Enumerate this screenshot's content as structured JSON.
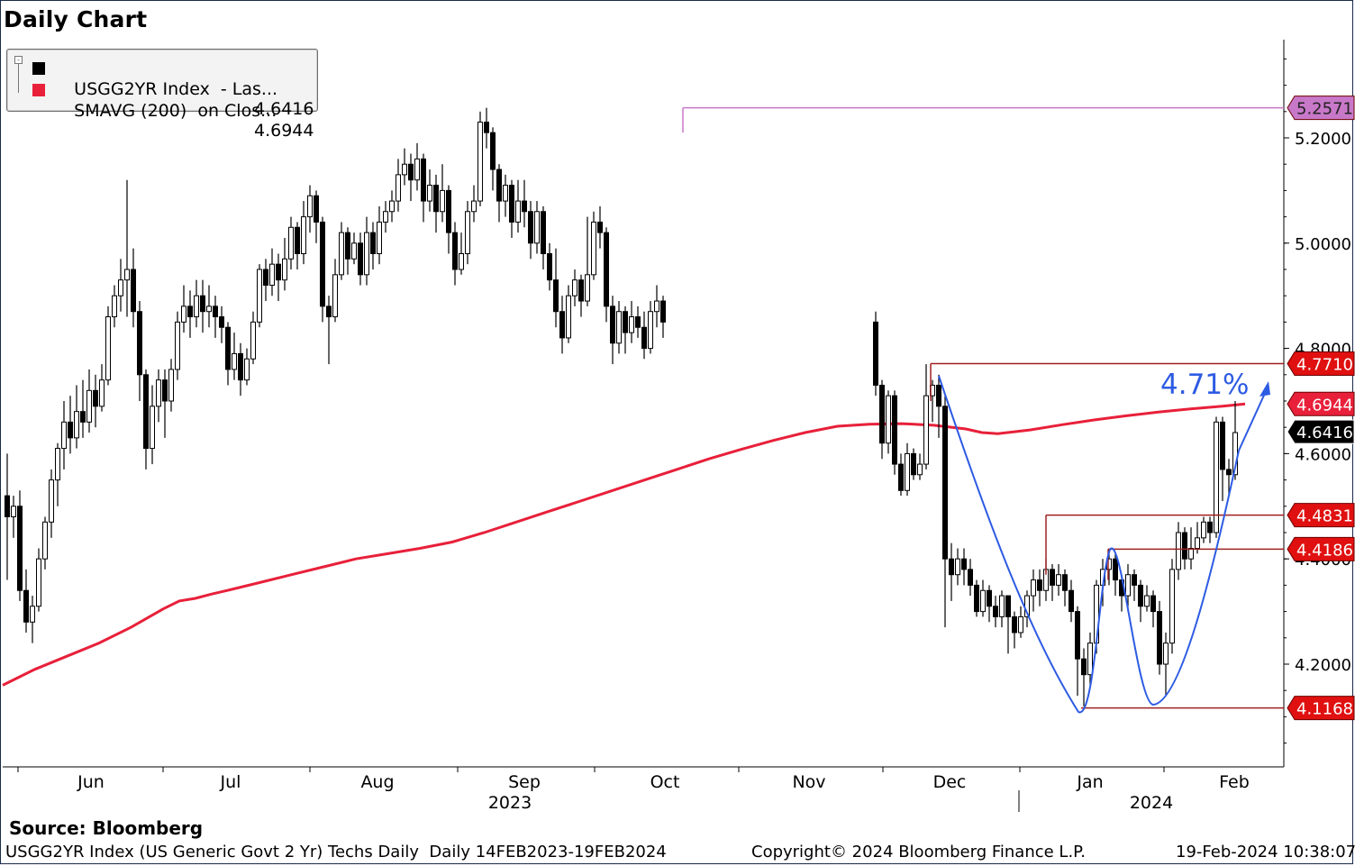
{
  "page": {
    "title": "Daily Chart",
    "source": "Source:  Bloomberg",
    "footer_left": "USGG2YR Index (US Generic Govt 2 Yr) Techs Daily  Daily 14FEB2023-19FEB2024",
    "footer_center": "Copyright© 2024 Bloomberg Finance L.P.",
    "footer_right": "19-Feb-2024 10:38:07"
  },
  "legend": [
    {
      "name": "USGG2YR Index  - Las...",
      "value": "4.6416",
      "color": "#000000"
    },
    {
      "name": "SMAVG (200)  on Clos...",
      "value": "4.6944",
      "color": "#e8203a"
    }
  ],
  "chart_data": {
    "type": "candlestick",
    "y_ticks": [
      "4.2000",
      "4.4000",
      "4.6000",
      "4.8000",
      "5.0000",
      "5.2000"
    ],
    "y_tick_values": [
      4.2,
      4.4,
      4.6,
      4.8,
      5.0,
      5.2
    ],
    "ylim": [
      3.99,
      5.36
    ],
    "x_months": [
      "Jun",
      "Jul",
      "Aug",
      "Sep",
      "Oct",
      "Nov",
      "Dec",
      "Jan",
      "Feb"
    ],
    "x_years": [
      "2023",
      "2024"
    ],
    "levels": [
      {
        "label": "5.2571",
        "value": 5.2571,
        "color": "#c878c8",
        "box": "#c878c8"
      },
      {
        "label": "4.7710",
        "value": 4.771,
        "color": "#a02020",
        "box": "#e01010"
      },
      {
        "label": "4.4831",
        "value": 4.4831,
        "color": "#a02020",
        "box": "#e01010"
      },
      {
        "label": "4.4186",
        "value": 4.4186,
        "color": "#a02020",
        "box": "#e01010"
      },
      {
        "label": "4.1168",
        "value": 4.1168,
        "color": "#a02020",
        "box": "#e01010"
      }
    ],
    "last_price": {
      "label": "4.6416",
      "value": 4.6416
    },
    "sma_last": {
      "label": "4.6944",
      "value": 4.6944
    },
    "annotation": {
      "text": "4.71%"
    },
    "sma200": [
      [
        0,
        4.16
      ],
      [
        20,
        4.19
      ],
      [
        40,
        4.215
      ],
      [
        60,
        4.24
      ],
      [
        80,
        4.27
      ],
      [
        100,
        4.305
      ],
      [
        110,
        4.32
      ],
      [
        120,
        4.325
      ],
      [
        130,
        4.333
      ],
      [
        140,
        4.34
      ],
      [
        160,
        4.355
      ],
      [
        180,
        4.37
      ],
      [
        200,
        4.385
      ],
      [
        220,
        4.4
      ],
      [
        240,
        4.41
      ],
      [
        260,
        4.42
      ],
      [
        280,
        4.432
      ],
      [
        300,
        4.45
      ],
      [
        320,
        4.47
      ],
      [
        340,
        4.49
      ],
      [
        360,
        4.51
      ],
      [
        380,
        4.53
      ],
      [
        400,
        4.55
      ],
      [
        420,
        4.57
      ],
      [
        440,
        4.59
      ],
      [
        460,
        4.608
      ],
      [
        480,
        4.625
      ],
      [
        500,
        4.64
      ],
      [
        520,
        4.652
      ],
      [
        540,
        4.656
      ],
      [
        560,
        4.657
      ],
      [
        580,
        4.654
      ],
      [
        600,
        4.647
      ],
      [
        610,
        4.64
      ],
      [
        620,
        4.638
      ],
      [
        640,
        4.645
      ],
      [
        660,
        4.655
      ],
      [
        680,
        4.664
      ],
      [
        700,
        4.672
      ],
      [
        720,
        4.679
      ],
      [
        740,
        4.685
      ],
      [
        760,
        4.69
      ],
      [
        774,
        4.6944
      ]
    ],
    "candles": [
      [
        0,
        4.52,
        4.48,
        4.6,
        4.36
      ],
      [
        7,
        4.48,
        4.5,
        4.52,
        4.44
      ],
      [
        14,
        4.5,
        4.34,
        4.53,
        4.32
      ],
      [
        21,
        4.34,
        4.28,
        4.38,
        4.26
      ],
      [
        28,
        4.28,
        4.31,
        4.33,
        4.24
      ],
      [
        35,
        4.31,
        4.4,
        4.42,
        4.3
      ],
      [
        42,
        4.4,
        4.47,
        4.48,
        4.38
      ],
      [
        49,
        4.47,
        4.55,
        4.57,
        4.44
      ],
      [
        56,
        4.55,
        4.61,
        4.62,
        4.5
      ],
      [
        63,
        4.61,
        4.66,
        4.7,
        4.57
      ],
      [
        70,
        4.66,
        4.63,
        4.71,
        4.6
      ],
      [
        77,
        4.63,
        4.68,
        4.73,
        4.61
      ],
      [
        84,
        4.68,
        4.66,
        4.74,
        4.63
      ],
      [
        91,
        4.66,
        4.72,
        4.76,
        4.64
      ],
      [
        98,
        4.72,
        4.69,
        4.75,
        4.65
      ],
      [
        105,
        4.69,
        4.74,
        4.77,
        4.68
      ],
      [
        112,
        4.74,
        4.86,
        4.88,
        4.73
      ],
      [
        119,
        4.86,
        4.9,
        4.92,
        4.84
      ],
      [
        126,
        4.9,
        4.93,
        4.97,
        4.87
      ],
      [
        133,
        4.93,
        4.95,
        5.12,
        4.86
      ],
      [
        140,
        4.95,
        4.87,
        4.99,
        4.84
      ],
      [
        147,
        4.87,
        4.75,
        4.89,
        4.7
      ],
      [
        154,
        4.75,
        4.61,
        4.76,
        4.57
      ],
      [
        161,
        4.61,
        4.69,
        4.73,
        4.58
      ],
      [
        168,
        4.69,
        4.74,
        4.76,
        4.66
      ],
      [
        175,
        4.74,
        4.7,
        4.76,
        4.63
      ],
      [
        182,
        4.7,
        4.76,
        4.78,
        4.68
      ],
      [
        189,
        4.76,
        4.85,
        4.87,
        4.74
      ],
      [
        196,
        4.85,
        4.88,
        4.92,
        4.83
      ],
      [
        203,
        4.88,
        4.86,
        4.91,
        4.82
      ],
      [
        210,
        4.86,
        4.9,
        4.93,
        4.84
      ],
      [
        217,
        4.9,
        4.87,
        4.93,
        4.83
      ],
      [
        224,
        4.87,
        4.88,
        4.92,
        4.84
      ],
      [
        231,
        4.88,
        4.86,
        4.9,
        4.82
      ],
      [
        238,
        4.86,
        4.84,
        4.88,
        4.81
      ],
      [
        245,
        4.84,
        4.76,
        4.85,
        4.73
      ],
      [
        252,
        4.76,
        4.79,
        4.83,
        4.74
      ],
      [
        259,
        4.79,
        4.74,
        4.81,
        4.71
      ],
      [
        266,
        4.74,
        4.78,
        4.8,
        4.73
      ],
      [
        273,
        4.78,
        4.85,
        4.87,
        4.77
      ],
      [
        280,
        4.85,
        4.95,
        4.96,
        4.84
      ],
      [
        287,
        4.95,
        4.92,
        4.97,
        4.89
      ],
      [
        294,
        4.92,
        4.96,
        4.99,
        4.9
      ],
      [
        301,
        4.96,
        4.93,
        4.98,
        4.89
      ],
      [
        308,
        4.93,
        4.97,
        5.01,
        4.91
      ],
      [
        315,
        4.97,
        5.03,
        5.05,
        4.95
      ],
      [
        322,
        5.03,
        4.98,
        5.04,
        4.95
      ],
      [
        329,
        4.98,
        5.05,
        5.08,
        4.96
      ],
      [
        336,
        5.05,
        5.09,
        5.11,
        5.02
      ],
      [
        343,
        5.09,
        5.04,
        5.1,
        5.0
      ],
      [
        350,
        5.04,
        4.88,
        5.05,
        4.85
      ],
      [
        357,
        4.88,
        4.86,
        4.9,
        4.77
      ],
      [
        364,
        4.86,
        4.94,
        4.97,
        4.85
      ],
      [
        371,
        4.94,
        5.02,
        5.04,
        4.93
      ],
      [
        378,
        5.02,
        4.97,
        5.03,
        4.94
      ],
      [
        385,
        4.97,
        5.0,
        5.02,
        4.96
      ],
      [
        392,
        5.0,
        4.94,
        5.02,
        4.92
      ],
      [
        399,
        4.94,
        5.02,
        5.05,
        4.92
      ],
      [
        406,
        5.02,
        4.98,
        5.04,
        4.95
      ],
      [
        413,
        4.98,
        5.04,
        5.07,
        4.96
      ],
      [
        420,
        5.04,
        5.06,
        5.08,
        5.02
      ],
      [
        427,
        5.06,
        5.08,
        5.1,
        5.04
      ],
      [
        434,
        5.08,
        5.13,
        5.16,
        5.06
      ],
      [
        441,
        5.13,
        5.15,
        5.18,
        5.11
      ],
      [
        448,
        5.15,
        5.12,
        5.17,
        5.08
      ],
      [
        455,
        5.12,
        5.16,
        5.19,
        5.1
      ],
      [
        462,
        5.16,
        5.08,
        5.17,
        5.04
      ],
      [
        469,
        5.08,
        5.11,
        5.14,
        5.06
      ],
      [
        476,
        5.11,
        5.06,
        5.13,
        5.02
      ],
      [
        483,
        5.06,
        5.1,
        5.15,
        5.04
      ],
      [
        490,
        5.1,
        5.02,
        5.11,
        4.98
      ],
      [
        497,
        5.02,
        4.95,
        5.04,
        4.92
      ],
      [
        504,
        4.95,
        4.98,
        5.02,
        4.94
      ],
      [
        511,
        4.98,
        5.06,
        5.08,
        4.96
      ],
      [
        518,
        5.06,
        5.08,
        5.11,
        5.04
      ],
      [
        525,
        5.08,
        5.23,
        5.25,
        5.07
      ],
      [
        532,
        5.23,
        5.21,
        5.2571,
        5.18
      ],
      [
        539,
        5.21,
        5.14,
        5.22,
        5.1
      ],
      [
        546,
        5.14,
        5.08,
        5.15,
        5.04
      ],
      [
        553,
        5.08,
        5.11,
        5.13,
        5.05
      ],
      [
        560,
        5.11,
        5.04,
        5.12,
        5.01
      ],
      [
        567,
        5.04,
        5.08,
        5.12,
        5.02
      ],
      [
        574,
        5.08,
        5.06,
        5.12,
        5.03
      ],
      [
        581,
        5.06,
        5.0,
        5.08,
        4.97
      ],
      [
        588,
        5.0,
        5.06,
        5.08,
        4.98
      ],
      [
        595,
        5.06,
        4.98,
        5.07,
        4.95
      ],
      [
        602,
        4.98,
        4.93,
        5.0,
        4.91
      ],
      [
        609,
        4.93,
        4.87,
        4.99,
        4.84
      ],
      [
        616,
        4.87,
        4.82,
        4.9,
        4.79
      ],
      [
        623,
        4.82,
        4.9,
        4.92,
        4.81
      ],
      [
        630,
        4.9,
        4.93,
        4.95,
        4.88
      ],
      [
        637,
        4.93,
        4.89,
        4.94,
        4.86
      ],
      [
        644,
        4.89,
        4.94,
        5.05,
        4.88
      ],
      [
        651,
        4.94,
        5.04,
        5.06,
        4.93
      ],
      [
        658,
        5.04,
        5.02,
        5.07,
        4.99
      ],
      [
        665,
        5.02,
        4.88,
        5.03,
        4.85
      ],
      [
        672,
        4.88,
        4.81,
        4.9,
        4.77
      ],
      [
        679,
        4.81,
        4.87,
        4.89,
        4.79
      ],
      [
        686,
        4.87,
        4.83,
        4.88,
        4.79
      ],
      [
        693,
        4.83,
        4.86,
        4.89,
        4.81
      ],
      [
        700,
        4.86,
        4.84,
        4.88,
        4.82
      ],
      [
        707,
        4.84,
        4.8,
        4.87,
        4.78
      ],
      [
        714,
        4.8,
        4.87,
        4.89,
        4.79
      ],
      [
        721,
        4.87,
        4.89,
        4.92,
        4.84
      ],
      [
        728,
        4.89,
        4.85,
        4.9,
        4.82
      ]
    ],
    "candles2": [
      [
        0,
        4.85,
        4.73,
        4.87,
        4.71
      ],
      [
        7,
        4.73,
        4.62,
        4.74,
        4.59
      ],
      [
        14,
        4.62,
        4.71,
        4.72,
        4.6
      ],
      [
        21,
        4.71,
        4.58,
        4.72,
        4.56
      ],
      [
        28,
        4.58,
        4.53,
        4.6,
        4.52
      ],
      [
        35,
        4.53,
        4.6,
        4.62,
        4.52
      ],
      [
        42,
        4.6,
        4.56,
        4.61,
        4.55
      ],
      [
        49,
        4.56,
        4.58,
        4.6,
        4.55
      ],
      [
        56,
        4.58,
        4.71,
        4.77,
        4.57
      ],
      [
        63,
        4.71,
        4.73,
        4.74,
        4.66
      ],
      [
        70,
        4.73,
        4.69,
        4.75,
        4.63
      ],
      [
        77,
        4.69,
        4.4,
        4.71,
        4.27
      ],
      [
        84,
        4.4,
        4.37,
        4.43,
        4.32
      ],
      [
        91,
        4.37,
        4.4,
        4.42,
        4.35
      ],
      [
        98,
        4.4,
        4.38,
        4.42,
        4.35
      ],
      [
        105,
        4.38,
        4.35,
        4.4,
        4.33
      ],
      [
        112,
        4.35,
        4.3,
        4.36,
        4.29
      ],
      [
        119,
        4.3,
        4.34,
        4.36,
        4.29
      ],
      [
        126,
        4.34,
        4.31,
        4.35,
        4.28
      ],
      [
        133,
        4.31,
        4.29,
        4.33,
        4.27
      ],
      [
        140,
        4.29,
        4.33,
        4.34,
        4.27
      ],
      [
        147,
        4.33,
        4.29,
        4.33,
        4.22
      ],
      [
        154,
        4.29,
        4.26,
        4.3,
        4.23
      ],
      [
        161,
        4.26,
        4.29,
        4.31,
        4.25
      ],
      [
        168,
        4.29,
        4.33,
        4.34,
        4.27
      ],
      [
        175,
        4.33,
        4.36,
        4.38,
        4.3
      ],
      [
        182,
        4.36,
        4.34,
        4.38,
        4.31
      ],
      [
        189,
        4.34,
        4.38,
        4.4,
        4.32
      ],
      [
        196,
        4.38,
        4.35,
        4.39,
        4.32
      ],
      [
        203,
        4.35,
        4.37,
        4.39,
        4.33
      ],
      [
        210,
        4.37,
        4.34,
        4.38,
        4.31
      ],
      [
        217,
        4.34,
        4.3,
        4.36,
        4.28
      ],
      [
        224,
        4.3,
        4.21,
        4.31,
        4.14
      ],
      [
        231,
        4.21,
        4.18,
        4.23,
        4.12
      ],
      [
        238,
        4.18,
        4.24,
        4.26,
        4.16
      ],
      [
        245,
        4.24,
        4.35,
        4.36,
        4.22
      ],
      [
        252,
        4.35,
        4.38,
        4.4,
        4.31
      ],
      [
        259,
        4.38,
        4.4,
        4.42,
        4.35
      ],
      [
        266,
        4.4,
        4.36,
        4.41,
        4.33
      ],
      [
        273,
        4.36,
        4.33,
        4.37,
        4.3
      ],
      [
        280,
        4.33,
        4.37,
        4.39,
        4.3
      ],
      [
        287,
        4.37,
        4.35,
        4.38,
        4.32
      ],
      [
        294,
        4.35,
        4.31,
        4.36,
        4.28
      ],
      [
        301,
        4.31,
        4.33,
        4.35,
        4.3
      ],
      [
        308,
        4.33,
        4.3,
        4.34,
        4.27
      ],
      [
        315,
        4.3,
        4.2,
        4.32,
        4.18
      ],
      [
        322,
        4.2,
        4.24,
        4.26,
        4.14
      ],
      [
        329,
        4.24,
        4.38,
        4.4,
        4.22
      ],
      [
        336,
        4.38,
        4.45,
        4.47,
        4.36
      ],
      [
        343,
        4.45,
        4.4,
        4.46,
        4.38
      ],
      [
        350,
        4.4,
        4.42,
        4.46,
        4.38
      ],
      [
        357,
        4.42,
        4.44,
        4.47,
        4.41
      ],
      [
        364,
        4.44,
        4.47,
        4.48,
        4.43
      ],
      [
        371,
        4.47,
        4.45,
        4.48,
        4.43
      ],
      [
        378,
        4.45,
        4.66,
        4.67,
        4.44
      ],
      [
        385,
        4.66,
        4.57,
        4.67,
        4.51
      ],
      [
        392,
        4.57,
        4.56,
        4.59,
        4.52
      ],
      [
        399,
        4.56,
        4.64,
        4.7,
        4.55
      ]
    ]
  }
}
